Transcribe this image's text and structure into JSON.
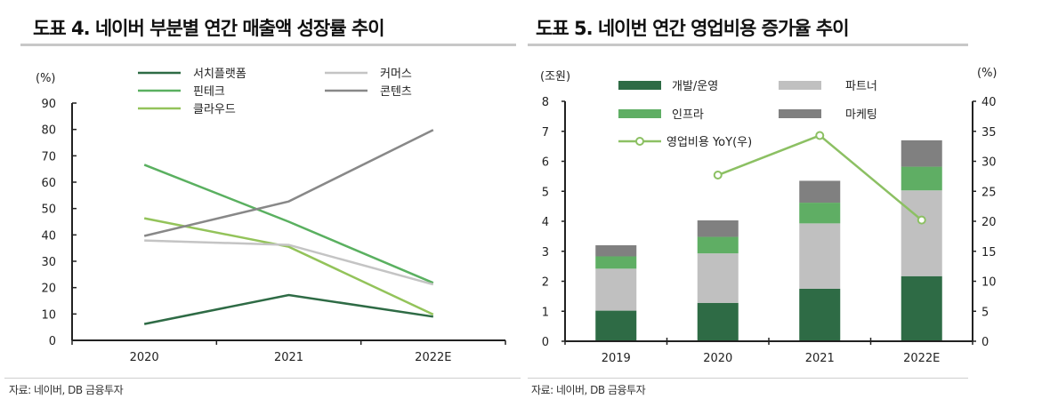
{
  "left_panel": {
    "title": "도표 4. 네이버 부분별 연간 매출액 성장률 추이",
    "source": "자료:  네이버, DB 금융투자"
  },
  "right_panel": {
    "title": "도표 5. 네이번 연간 영업비용 증가율 추이",
    "source": "자료:  네이버, DB 금융투자"
  },
  "chart_data": [
    {
      "type": "line",
      "title": "도표 4. 네이버 부분별 연간 매출액 성장률 추이",
      "ylabel": "(%)",
      "xlabel": "",
      "x": [
        "2020",
        "2021",
        "2022E"
      ],
      "ylim": [
        0,
        90
      ],
      "yticks": [
        0,
        10,
        20,
        30,
        40,
        50,
        60,
        70,
        80,
        90
      ],
      "grid": false,
      "legend_position": "top",
      "series": [
        {
          "name": "서치플랫폼",
          "color": "#2e6b45",
          "values": [
            6.2,
            17.2,
            9.0
          ]
        },
        {
          "name": "핀테크",
          "color": "#5ab060",
          "values": [
            66.6,
            45.0,
            21.8
          ]
        },
        {
          "name": "클라우드",
          "color": "#93c35a",
          "values": [
            46.3,
            35.5,
            9.8
          ]
        },
        {
          "name": "커머스",
          "color": "#c4c4c4",
          "values": [
            37.9,
            36.2,
            21.2
          ]
        },
        {
          "name": "콘텐츠",
          "color": "#888888",
          "values": [
            39.6,
            52.7,
            79.8
          ]
        }
      ]
    },
    {
      "type": "bar",
      "stacked": true,
      "title": "도표 5. 네이번 연간 영업비용 증가율 추이",
      "ylabel": "(조원)",
      "y2label": "(%)",
      "xlabel": "",
      "categories": [
        "2019",
        "2020",
        "2021",
        "2022E"
      ],
      "ylim": [
        0,
        8
      ],
      "yticks": [
        0,
        1,
        2,
        3,
        4,
        5,
        6,
        7,
        8
      ],
      "y2lim": [
        0,
        40
      ],
      "y2ticks": [
        0,
        5,
        10,
        15,
        20,
        25,
        30,
        35,
        40
      ],
      "grid": false,
      "legend_position": "top",
      "series": [
        {
          "name": "개발/운영",
          "color": "#2e6b45",
          "values": [
            1.02,
            1.28,
            1.75,
            2.17
          ]
        },
        {
          "name": "파트너",
          "color": "#c0c0c0",
          "values": [
            1.4,
            1.65,
            2.18,
            2.86
          ]
        },
        {
          "name": "인프라",
          "color": "#5fae64",
          "values": [
            0.41,
            0.55,
            0.69,
            0.79
          ]
        },
        {
          "name": "마케팅",
          "color": "#808080",
          "values": [
            0.37,
            0.55,
            0.73,
            0.88
          ]
        }
      ],
      "line_series": {
        "name": "영업비용 YoY(우)",
        "color": "#8cc063",
        "axis": "right",
        "values": [
          null,
          27.7,
          34.3,
          20.2
        ]
      }
    }
  ]
}
